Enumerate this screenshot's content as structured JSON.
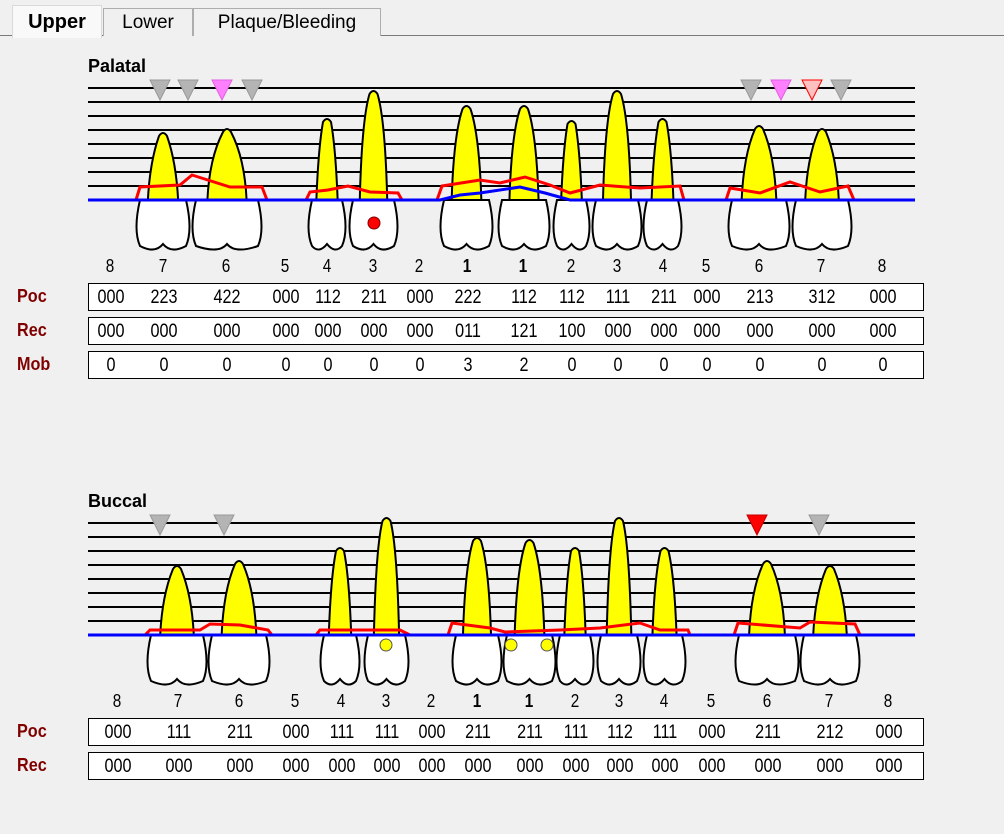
{
  "tabs": [
    {
      "label": "Upper",
      "active": true
    },
    {
      "label": "Lower",
      "active": false
    },
    {
      "label": "Plaque/Bleeding",
      "active": false
    }
  ],
  "colors": {
    "gingival_margin": "#ff0000",
    "mucogingival": "#0000ff",
    "root": "#ffff00",
    "furcation_gray": "#b4b4b4",
    "furcation_pink": "#ff80ff",
    "furcation_red": "#ff0000",
    "bleeding_dot": "#ff0000",
    "plaque_dot": "#ffff00"
  },
  "palatal": {
    "title": "Palatal",
    "tooth_numbers": [
      "8",
      "7",
      "6",
      "5",
      "4",
      "3",
      "2",
      "1",
      "1",
      "2",
      "3",
      "4",
      "5",
      "6",
      "7",
      "8"
    ],
    "rows": [
      {
        "label": "Poc",
        "values": [
          "000",
          "223",
          "422",
          "000",
          "112",
          "211",
          "000",
          "222",
          "112",
          "112",
          "111",
          "211",
          "000",
          "213",
          "312",
          "000"
        ]
      },
      {
        "label": "Rec",
        "values": [
          "000",
          "000",
          "000",
          "000",
          "000",
          "000",
          "000",
          "011",
          "121",
          "100",
          "000",
          "000",
          "000",
          "000",
          "000",
          "000"
        ]
      },
      {
        "label": "Mob",
        "values": [
          "0",
          "0",
          "0",
          "0",
          "0",
          "0",
          "0",
          "3",
          "2",
          "0",
          "0",
          "0",
          "0",
          "0",
          "0",
          "0"
        ]
      }
    ]
  },
  "buccal": {
    "title": "Buccal",
    "tooth_numbers": [
      "8",
      "7",
      "6",
      "5",
      "4",
      "3",
      "2",
      "1",
      "1",
      "2",
      "3",
      "4",
      "5",
      "6",
      "7",
      "8"
    ],
    "rows": [
      {
        "label": "Poc",
        "values": [
          "000",
          "111",
          "211",
          "000",
          "111",
          "111",
          "000",
          "211",
          "211",
          "111",
          "112",
          "111",
          "000",
          "211",
          "212",
          "000"
        ]
      },
      {
        "label": "Rec",
        "values": [
          "000",
          "000",
          "000",
          "000",
          "000",
          "000",
          "000",
          "000",
          "000",
          "000",
          "000",
          "000",
          "000",
          "000",
          "000",
          "000"
        ]
      }
    ]
  }
}
